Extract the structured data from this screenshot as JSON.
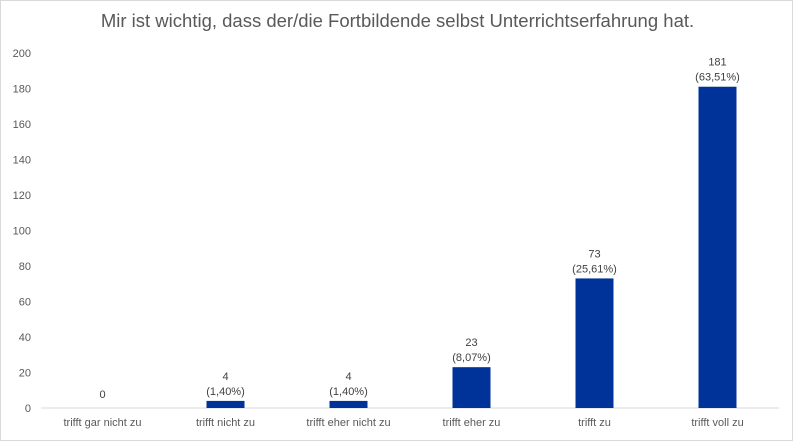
{
  "chart_data": {
    "type": "bar",
    "title": "Mir ist wichtig, dass der/die Fortbildende selbst Unterrichtserfahrung hat.",
    "categories": [
      "trifft gar nicht zu",
      "trifft nicht zu",
      "trifft eher nicht zu",
      "trifft eher zu",
      "trifft zu",
      "trifft voll zu"
    ],
    "values": [
      0,
      4,
      4,
      23,
      73,
      181
    ],
    "percent_labels": [
      "",
      "(1,40%)",
      "(1,40%)",
      "(8,07%)",
      "(25,61%)",
      "(63,51%)"
    ],
    "ylim": [
      0,
      200
    ],
    "yticks": [
      0,
      20,
      40,
      60,
      80,
      100,
      120,
      140,
      160,
      180,
      200
    ],
    "xlabel": "",
    "ylabel": "",
    "grid": false,
    "legend": "none",
    "colors": {
      "bar": "#003399",
      "text": "#595959",
      "axis": "#d9d9d9"
    }
  }
}
